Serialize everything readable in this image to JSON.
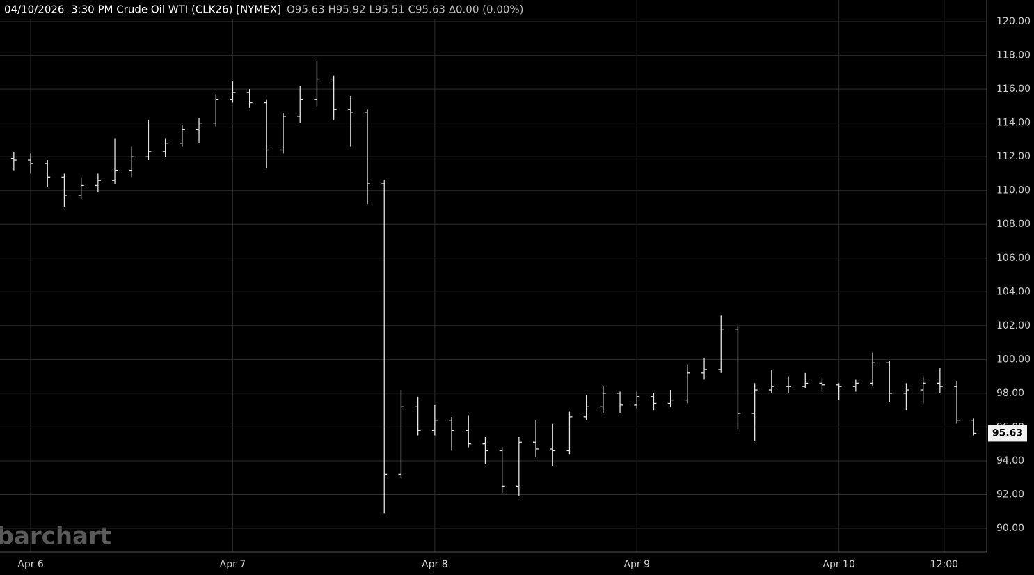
{
  "chart_data": {
    "type": "ohlc",
    "title": "04/10/2026  3:30 PM Crude Oil WTI (CLK26) [NYMEX]",
    "quote": "O95.63 H95.92 L95.51 C95.63 Δ0.00 (0.00%)",
    "watermark": "barchart",
    "color": "#e6e6e6",
    "grid": true,
    "x": [
      -2,
      0,
      2,
      4,
      6,
      8,
      10,
      12,
      14,
      16,
      18,
      20,
      22,
      24,
      26,
      28,
      30,
      32,
      34,
      36,
      38,
      40,
      42,
      44,
      46,
      48,
      50,
      52,
      54,
      56,
      58,
      60,
      62,
      64,
      66,
      68,
      70,
      72,
      74,
      76,
      78,
      80,
      82,
      84,
      86,
      88,
      90,
      92,
      94,
      96,
      98,
      100,
      102,
      104,
      106,
      108,
      110,
      112
    ],
    "open": [
      111.9,
      111.8,
      111.6,
      110.8,
      109.7,
      110.3,
      110.6,
      111.2,
      112.0,
      112.3,
      112.8,
      113.6,
      114.0,
      115.4,
      115.8,
      115.2,
      112.4,
      114.4,
      115.4,
      116.6,
      114.8,
      114.6,
      110.4,
      93.2,
      97.2,
      95.8,
      96.4,
      95.8,
      95.0,
      94.6,
      92.5,
      95.1,
      94.7,
      94.6,
      96.6,
      97.2,
      98.0,
      97.3,
      97.8,
      97.4,
      97.6,
      99.2,
      99.4,
      101.8,
      96.8,
      98.2,
      98.4,
      98.4,
      98.6,
      98.5,
      98.4,
      98.6,
      99.8,
      98.0,
      98.2,
      98.6,
      98.4,
      96.4
    ],
    "high": [
      112.3,
      112.2,
      111.8,
      111.0,
      110.8,
      111.0,
      113.1,
      112.6,
      114.2,
      113.1,
      113.9,
      114.3,
      115.7,
      116.5,
      116.0,
      115.4,
      114.6,
      116.2,
      117.7,
      116.8,
      115.6,
      114.8,
      110.6,
      98.2,
      97.8,
      97.3,
      96.6,
      96.7,
      95.4,
      94.8,
      95.4,
      96.4,
      96.2,
      96.9,
      97.9,
      98.4,
      98.1,
      98.1,
      98.0,
      98.2,
      99.7,
      100.1,
      102.6,
      102.0,
      98.6,
      99.4,
      99.0,
      99.2,
      98.9,
      98.6,
      98.8,
      100.4,
      99.9,
      98.6,
      99.0,
      99.5,
      98.7,
      96.5
    ],
    "low": [
      111.2,
      111.0,
      110.2,
      109.0,
      109.5,
      109.9,
      110.4,
      110.8,
      111.8,
      112.0,
      112.6,
      112.8,
      113.8,
      115.2,
      114.9,
      111.3,
      112.2,
      114.0,
      115.0,
      114.2,
      112.6,
      109.2,
      90.9,
      93.0,
      95.5,
      95.5,
      94.6,
      94.8,
      93.8,
      92.1,
      91.9,
      94.2,
      93.7,
      94.4,
      96.4,
      96.8,
      96.8,
      97.1,
      97.0,
      97.2,
      97.4,
      98.8,
      99.2,
      95.8,
      95.2,
      98.0,
      98.0,
      98.3,
      98.1,
      97.6,
      98.1,
      98.4,
      97.5,
      97.0,
      97.4,
      98.0,
      96.2,
      95.5
    ],
    "close": [
      111.8,
      111.6,
      110.8,
      109.7,
      110.3,
      110.6,
      111.2,
      112.0,
      112.3,
      112.8,
      113.6,
      114.0,
      115.4,
      115.8,
      115.2,
      112.4,
      114.4,
      115.4,
      116.6,
      114.8,
      114.6,
      110.4,
      93.2,
      97.2,
      95.8,
      96.4,
      95.8,
      95.0,
      94.6,
      92.5,
      95.1,
      94.7,
      94.6,
      96.6,
      97.2,
      98.0,
      97.3,
      97.8,
      97.4,
      97.6,
      99.2,
      99.4,
      101.8,
      96.8,
      98.2,
      98.4,
      98.4,
      98.6,
      98.5,
      98.4,
      98.6,
      99.8,
      98.0,
      98.2,
      98.6,
      98.4,
      96.4,
      95.63
    ],
    "last_price": {
      "value": 95.63,
      "label": "95.63"
    },
    "xlim": [
      -3.64,
      113.55
    ],
    "xticks": [
      {
        "value": 0,
        "label": "Apr 6"
      },
      {
        "value": 24,
        "label": "Apr 7"
      },
      {
        "value": 48,
        "label": "Apr 8"
      },
      {
        "value": 72,
        "label": "Apr 9"
      },
      {
        "value": 96,
        "label": "Apr 10"
      },
      {
        "value": 108.5,
        "label": "12:00"
      }
    ],
    "ylim": [
      88.6,
      121.28
    ],
    "yticks": [
      {
        "value": 90,
        "label": "90.00"
      },
      {
        "value": 92,
        "label": "92.00"
      },
      {
        "value": 94,
        "label": "94.00"
      },
      {
        "value": 96,
        "label": "96.00"
      },
      {
        "value": 98,
        "label": "98.00"
      },
      {
        "value": 100,
        "label": "100.00"
      },
      {
        "value": 102,
        "label": "102.00"
      },
      {
        "value": 104,
        "label": "104.00"
      },
      {
        "value": 106,
        "label": "106.00"
      },
      {
        "value": 108,
        "label": "108.00"
      },
      {
        "value": 110,
        "label": "110.00"
      },
      {
        "value": 112,
        "label": "112.00"
      },
      {
        "value": 114,
        "label": "114.00"
      },
      {
        "value": 116,
        "label": "116.00"
      },
      {
        "value": 118,
        "label": "118.00"
      },
      {
        "value": 120,
        "label": "120.00"
      }
    ]
  }
}
